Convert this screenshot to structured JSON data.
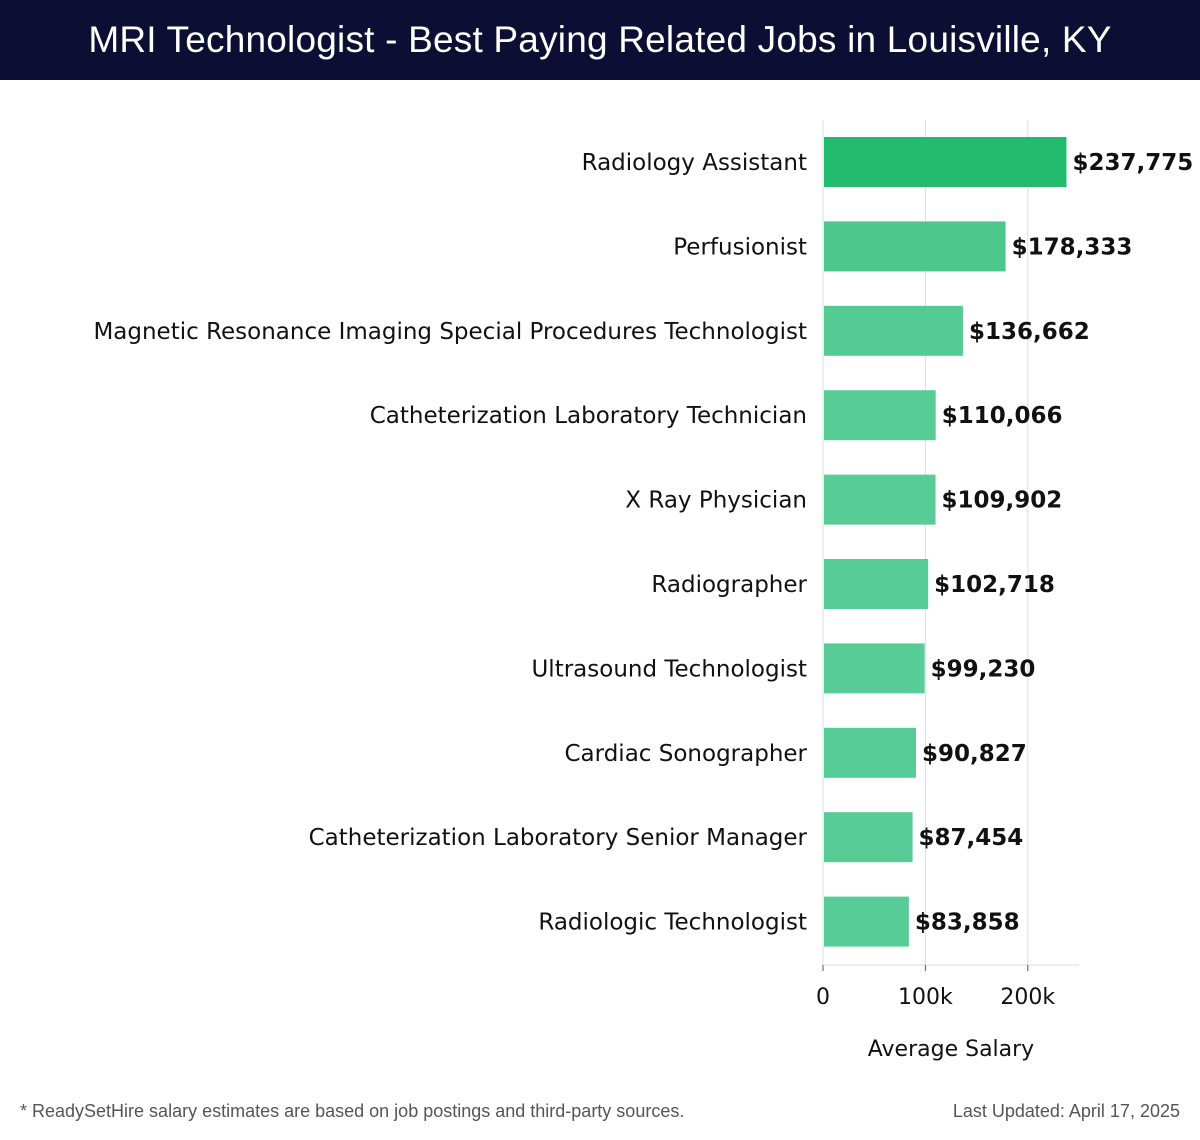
{
  "header": {
    "title": "MRI Technologist - Best Paying Related Jobs in Louisville, KY"
  },
  "footer": {
    "note": "* ReadySetHire salary estimates are based on job postings and third-party sources.",
    "updated": "Last Updated: April 17, 2025"
  },
  "colors": {
    "header_bg": "#0c0f33",
    "bar_top": "#23bc6f",
    "bar_light": "#58cc96",
    "grid": "#dddddd"
  },
  "chart_data": {
    "type": "bar",
    "orientation": "horizontal",
    "title": "MRI Technologist - Best Paying Related Jobs in Louisville, KY",
    "xlabel": "Average Salary",
    "ylabel": "",
    "xlim": [
      0,
      250000
    ],
    "xticks": [
      0,
      100000,
      200000
    ],
    "xtick_labels": [
      "0",
      "100k",
      "200k"
    ],
    "grid": true,
    "categories": [
      "Radiology Assistant",
      "Perfusionist",
      "Magnetic Resonance Imaging Special Procedures Technologist",
      "Catheterization Laboratory Technician",
      "X Ray Physician",
      "Radiographer",
      "Ultrasound Technologist",
      "Cardiac Sonographer",
      "Catheterization Laboratory Senior Manager",
      "Radiologic Technologist"
    ],
    "values": [
      237775,
      178333,
      136662,
      110066,
      109902,
      102718,
      99230,
      90827,
      87454,
      83858
    ],
    "value_labels": [
      "$237,775",
      "$178,333",
      "$136,662",
      "$110,066",
      "$109,902",
      "$102,718",
      "$99,230",
      "$90,827",
      "$87,454",
      "$83,858"
    ]
  }
}
